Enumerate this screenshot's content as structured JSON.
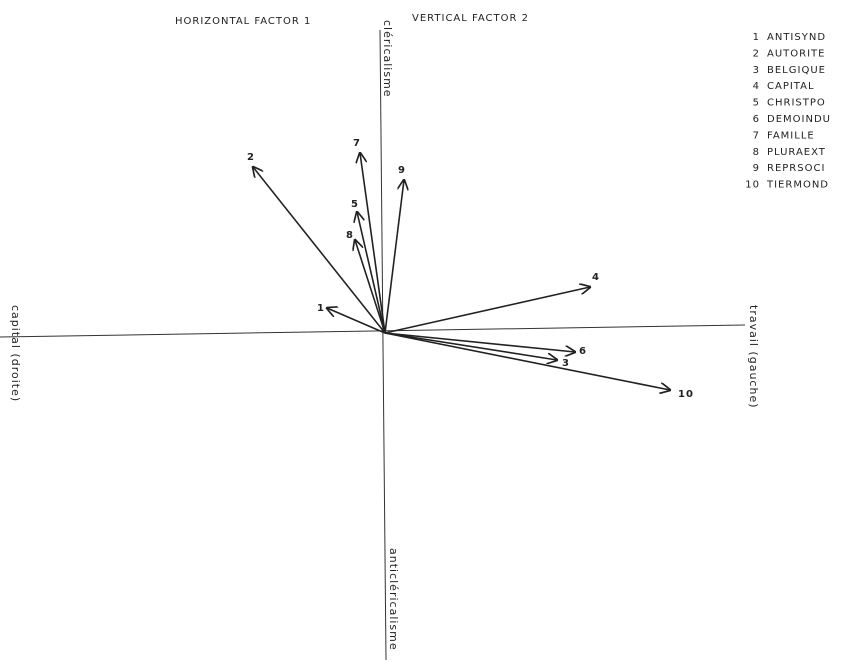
{
  "header": {
    "horizontal": "HORIZONTAL  FACTOR  1",
    "vertical": "VERTICAL  FACTOR  2"
  },
  "axes": {
    "top": "cléricalisme",
    "bottom": "anticléricalisme",
    "left": "capital (droite)",
    "right": "travail (gauche)"
  },
  "legend": [
    {
      "number": "1",
      "label": "ANTISYND"
    },
    {
      "number": "2",
      "label": "AUTORITE"
    },
    {
      "number": "3",
      "label": "BELGIQUE"
    },
    {
      "number": "4",
      "label": "CAPITAL"
    },
    {
      "number": "5",
      "label": "CHRISTPO"
    },
    {
      "number": "6",
      "label": "DEMOINDU"
    },
    {
      "number": "7",
      "label": "FAMILLE"
    },
    {
      "number": "8",
      "label": "PLURAEXT"
    },
    {
      "number": "9",
      "label": "REPRSOCI"
    },
    {
      "number": "10",
      "label": "TIERMOND"
    }
  ],
  "arrows": [
    {
      "label": "1"
    },
    {
      "label": "2"
    },
    {
      "label": "3"
    },
    {
      "label": "4"
    },
    {
      "label": "5"
    },
    {
      "label": "6"
    },
    {
      "label": "7"
    },
    {
      "label": "8"
    },
    {
      "label": "9"
    },
    {
      "label": "10"
    }
  ]
}
